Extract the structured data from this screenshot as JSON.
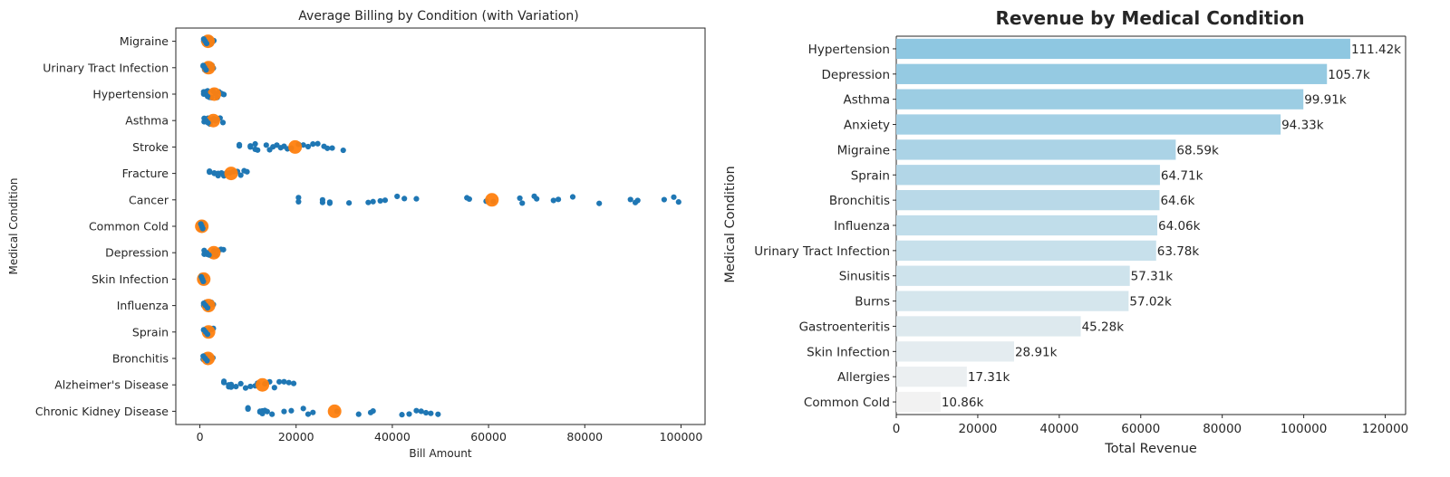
{
  "chart_data": [
    {
      "type": "scatter",
      "title": "Average Billing by Condition (with Variation)",
      "xlabel": "Bill Amount",
      "ylabel": "Medical Condition",
      "xlim": [
        -5000,
        105000
      ],
      "xticks": [
        0,
        20000,
        40000,
        60000,
        80000,
        100000
      ],
      "xtick_labels": [
        "0",
        "20000",
        "40000",
        "60000",
        "80000",
        "100000"
      ],
      "grid": false,
      "colors": {
        "points": "#1f77b4",
        "mean": "#ff7f0e"
      },
      "categories": [
        "Migraine",
        "Urinary Tract Infection",
        "Hypertension",
        "Asthma",
        "Stroke",
        "Fracture",
        "Cancer",
        "Common Cold",
        "Depression",
        "Skin Infection",
        "Influenza",
        "Sprain",
        "Bronchitis",
        "Alzheimer's Disease",
        "Chronic Kidney Disease"
      ],
      "series": [
        {
          "values_by_category": [
            [
              800,
              1100,
              1400,
              1500,
              1700,
              1900,
              2100,
              2300,
              2600,
              2900
            ],
            [
              700,
              1000,
              1300,
              1500,
              1700,
              2000,
              2200,
              2500,
              2800
            ],
            [
              800,
              1200,
              1600,
              2000,
              2400,
              2800,
              3200,
              3600,
              4000,
              4500,
              5000
            ],
            [
              900,
              1300,
              1700,
              2100,
              2500,
              2900,
              3300,
              3700,
              4200,
              4800
            ],
            [
              8200,
              10500,
              11500,
              12000,
              13800,
              14500,
              15200,
              16000,
              16800,
              17500,
              18200,
              19000,
              20500,
              21500,
              22500,
              23500,
              24500,
              25800,
              26500,
              27500,
              29800
            ],
            [
              2000,
              3000,
              3800,
              4500,
              5000,
              5500,
              6200,
              7000,
              7800,
              8500,
              9200,
              9800
            ],
            [
              20500,
              25500,
              27000,
              31000,
              35000,
              36000,
              37500,
              38500,
              41000,
              42500,
              45000,
              55500,
              56000,
              59500,
              61000,
              66500,
              67000,
              69500,
              70000,
              73500,
              74500,
              77500,
              83000,
              89500,
              90500,
              91000,
              96500,
              98500,
              99500
            ],
            [
              200,
              400,
              600,
              800
            ],
            [
              900,
              1400,
              1900,
              2400,
              2900,
              3400,
              3900,
              4400,
              4900
            ],
            [
              300,
              500,
              700,
              900,
              1100
            ],
            [
              800,
              1200,
              1600,
              2000,
              2400,
              2800
            ],
            [
              800,
              1200,
              1600,
              2000,
              2400,
              2800
            ],
            [
              700,
              1100,
              1500,
              1900,
              2300,
              2700
            ],
            [
              5000,
              6000,
              6500,
              7500,
              8500,
              9500,
              10500,
              11500,
              12000,
              13500,
              14500,
              15500,
              16500,
              17500,
              18500,
              19500
            ],
            [
              10000,
              12500,
              13000,
              13500,
              14000,
              15000,
              17500,
              19000,
              21500,
              22500,
              23500,
              28500,
              33000,
              35500,
              36000,
              42000,
              43500,
              45000,
              46000,
              47000,
              48000,
              49500
            ]
          ],
          "means": [
            1700,
            1800,
            3000,
            2800,
            19800,
            6500,
            60700,
            400,
            2900,
            800,
            1800,
            1800,
            1700,
            13000,
            28000
          ]
        }
      ]
    },
    {
      "type": "bar",
      "orientation": "horizontal",
      "title": "Revenue by Medical Condition",
      "xlabel": "Total Revenue",
      "ylabel": "Medical Condition",
      "xlim": [
        0,
        125000
      ],
      "xticks": [
        0,
        20000,
        40000,
        60000,
        80000,
        100000,
        120000
      ],
      "xtick_labels": [
        "0",
        "20000",
        "40000",
        "60000",
        "80000",
        "100000",
        "120000"
      ],
      "grid": false,
      "palette": {
        "start": "#8ec7e1",
        "end": "#f2f2f2"
      },
      "categories": [
        "Hypertension",
        "Depression",
        "Asthma",
        "Anxiety",
        "Migraine",
        "Sprain",
        "Bronchitis",
        "Influenza",
        "Urinary Tract Infection",
        "Sinusitis",
        "Burns",
        "Gastroenteritis",
        "Skin Infection",
        "Allergies",
        "Common Cold"
      ],
      "values": [
        111420,
        105700,
        99910,
        94330,
        68590,
        64710,
        64600,
        64060,
        63780,
        57310,
        57020,
        45280,
        28910,
        17310,
        10860
      ],
      "data_labels": [
        "111.42k",
        "105.7k",
        "99.91k",
        "94.33k",
        "68.59k",
        "64.71k",
        "64.6k",
        "64.06k",
        "63.78k",
        "57.31k",
        "57.02k",
        "45.28k",
        "28.91k",
        "17.31k",
        "10.86k"
      ]
    }
  ]
}
